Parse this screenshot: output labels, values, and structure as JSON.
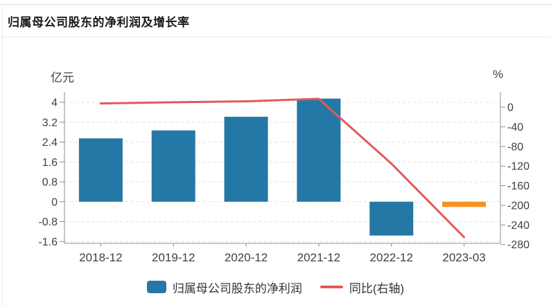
{
  "card": {
    "title": "归属母公司股东的净利润及增长率"
  },
  "chart_data": {
    "type": "bar-line-combo",
    "title": "归属母公司股东的净利润及增长率",
    "categories": [
      "2018-12",
      "2019-12",
      "2020-12",
      "2021-12",
      "2022-12",
      "2023-03"
    ],
    "series": [
      {
        "name": "归属母公司股东的净利润",
        "type": "bar",
        "y_axis": "left",
        "unit": "亿元",
        "values": [
          2.55,
          2.87,
          3.42,
          4.15,
          -1.36,
          -0.21
        ],
        "point_colors": [
          "#2478a6",
          "#2478a6",
          "#2478a6",
          "#2478a6",
          "#2478a6",
          "#f39222"
        ]
      },
      {
        "name": "同比(右轴)",
        "type": "line",
        "y_axis": "right",
        "unit": "%",
        "values": [
          7.5,
          10,
          12,
          17,
          -115,
          -265
        ],
        "color": "#e2595a"
      }
    ],
    "left_axis": {
      "unit_label": "亿元",
      "ticks": [
        4,
        3.2,
        2.4,
        1.6,
        0.8,
        0,
        -0.8,
        -1.6
      ],
      "range": [
        -1.7,
        4.4
      ]
    },
    "right_axis": {
      "unit_label": "%",
      "ticks": [
        0,
        -40,
        -80,
        -120,
        -160,
        -200,
        -240,
        -280
      ],
      "range": [
        -290,
        30
      ]
    },
    "grid": "dashed-horizontal",
    "legend_position": "bottom-center"
  },
  "legend": {
    "items": [
      {
        "label": "归属母公司股东的净利润",
        "swatch": "bar",
        "color": "#2478a6"
      },
      {
        "label": "同比(右轴)",
        "swatch": "line",
        "color": "#e2595a"
      }
    ]
  },
  "colors": {
    "bar_blue": "#2478a6",
    "bar_orange": "#f39222",
    "line_red": "#e2595a",
    "axis": "#8c8c8c",
    "grid": "#e0e0e0",
    "tick_text": "#404040",
    "title_text": "#1a1a1a",
    "divider": "#e8e8e8",
    "card_border": "#d9d9d9",
    "background": "#ffffff"
  }
}
